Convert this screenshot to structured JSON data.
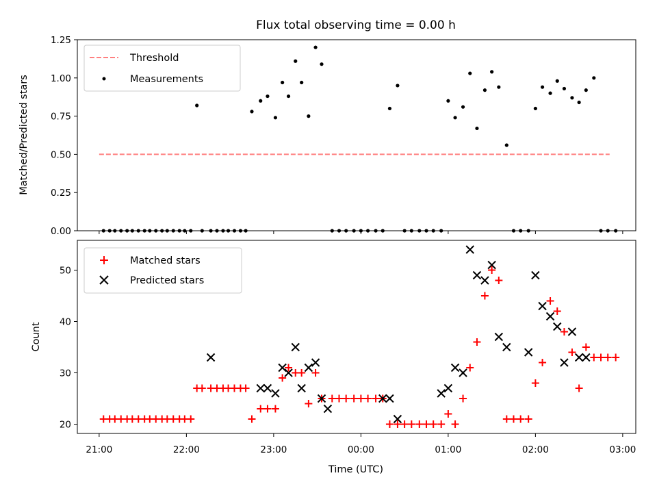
{
  "title": "Flux total observing time = 0.00 h",
  "colors": {
    "threshold": "#ff7f7f",
    "measurement": "#000000",
    "matched": "#ff0000",
    "predicted": "#000000"
  },
  "chart_data": [
    {
      "type": "scatter",
      "ylabel": "Matched/Predicted stars",
      "ylim": [
        0,
        1.25
      ],
      "yticks": [
        "0.00",
        "0.25",
        "0.50",
        "0.75",
        "1.00",
        "1.25"
      ],
      "xlim": [
        -0.25,
        6.15
      ],
      "legend": {
        "placement": "top-left",
        "entries": [
          "Threshold",
          "Measurements"
        ]
      },
      "threshold": {
        "name": "Threshold",
        "value": 0.5,
        "x_range": [
          0.0,
          5.85
        ]
      },
      "series": [
        {
          "name": "Measurements",
          "x": [
            0.05,
            0.12,
            0.18,
            0.25,
            0.32,
            0.38,
            0.45,
            0.52,
            0.58,
            0.65,
            0.72,
            0.78,
            0.85,
            0.92,
            0.98,
            1.05,
            1.12,
            1.18,
            1.28,
            1.35,
            1.42,
            1.48,
            1.55,
            1.62,
            1.68,
            1.75,
            1.85,
            1.93,
            2.02,
            2.1,
            2.17,
            2.25,
            2.32,
            2.4,
            2.48,
            2.55,
            2.67,
            2.75,
            2.83,
            2.92,
            3.0,
            3.08,
            3.17,
            3.25,
            3.33,
            3.42,
            3.5,
            3.58,
            3.67,
            3.75,
            3.83,
            3.92,
            4.0,
            4.08,
            4.17,
            4.25,
            4.33,
            4.42,
            4.5,
            4.58,
            4.67,
            4.75,
            4.83,
            4.92,
            5.0,
            5.08,
            5.17,
            5.25,
            5.33,
            5.42,
            5.5,
            5.58,
            5.67,
            5.75,
            5.83,
            5.92
          ],
          "y": [
            0,
            0,
            0,
            0,
            0,
            0,
            0,
            0,
            0,
            0,
            0,
            0,
            0,
            0,
            0,
            0,
            0.82,
            0,
            0,
            0,
            0,
            0,
            0,
            0,
            0,
            0.78,
            0.85,
            0.88,
            0.74,
            0.97,
            0.88,
            1.11,
            0.97,
            0.75,
            1.2,
            1.09,
            0,
            0,
            0,
            0,
            0,
            0,
            0,
            0,
            0.8,
            0.95,
            0,
            0,
            0,
            0,
            0,
            0,
            0.85,
            0.74,
            0.81,
            1.03,
            0.67,
            0.92,
            1.04,
            0.94,
            0.56,
            0,
            0,
            0,
            0.8,
            0.94,
            0.9,
            0.98,
            0.93,
            0.87,
            0.84,
            0.92,
            1.0,
            0,
            0,
            0
          ]
        }
      ]
    },
    {
      "type": "scatter",
      "xlabel": "Time (UTC)",
      "ylabel": "Count",
      "ylim": [
        18.2,
        55.8
      ],
      "yticks": [
        "20",
        "30",
        "40",
        "50"
      ],
      "xlim": [
        -0.25,
        6.15
      ],
      "xticks": [
        "21:00",
        "22:00",
        "23:00",
        "00:00",
        "01:00",
        "02:00",
        "03:00"
      ],
      "legend": {
        "placement": "top-left",
        "entries": [
          "Matched stars",
          "Predicted stars"
        ]
      },
      "series": [
        {
          "name": "Matched stars",
          "x": [
            0.05,
            0.12,
            0.18,
            0.25,
            0.32,
            0.38,
            0.45,
            0.52,
            0.58,
            0.65,
            0.72,
            0.78,
            0.85,
            0.92,
            0.98,
            1.05,
            1.12,
            1.18,
            1.28,
            1.35,
            1.42,
            1.48,
            1.55,
            1.62,
            1.68,
            1.75,
            1.85,
            1.93,
            2.02,
            2.1,
            2.17,
            2.25,
            2.32,
            2.4,
            2.48,
            2.55,
            2.67,
            2.75,
            2.83,
            2.92,
            3.0,
            3.08,
            3.17,
            3.25,
            3.33,
            3.42,
            3.5,
            3.58,
            3.67,
            3.75,
            3.83,
            3.92,
            4.0,
            4.08,
            4.17,
            4.25,
            4.33,
            4.42,
            4.5,
            4.58,
            4.67,
            4.75,
            4.83,
            4.92,
            5.0,
            5.08,
            5.17,
            5.25,
            5.33,
            5.42,
            5.5,
            5.58,
            5.67,
            5.75,
            5.83,
            5.92
          ],
          "y": [
            21,
            21,
            21,
            21,
            21,
            21,
            21,
            21,
            21,
            21,
            21,
            21,
            21,
            21,
            21,
            21,
            27,
            27,
            27,
            27,
            27,
            27,
            27,
            27,
            27,
            21,
            23,
            23,
            23,
            29,
            31,
            30,
            30,
            24,
            30,
            25,
            25,
            25,
            25,
            25,
            25,
            25,
            25,
            25,
            20,
            20,
            20,
            20,
            20,
            20,
            20,
            20,
            22,
            20,
            25,
            31,
            36,
            45,
            50,
            48,
            21,
            21,
            21,
            21,
            28,
            32,
            44,
            42,
            38,
            34,
            27,
            35,
            33,
            33,
            33,
            33
          ]
        },
        {
          "name": "Predicted stars",
          "x": [
            1.28,
            1.85,
            1.93,
            2.02,
            2.1,
            2.17,
            2.25,
            2.32,
            2.4,
            2.48,
            2.55,
            2.62,
            3.25,
            3.33,
            3.42,
            3.92,
            4.0,
            4.08,
            4.17,
            4.25,
            4.33,
            4.42,
            4.5,
            4.58,
            4.67,
            4.92,
            5.0,
            5.08,
            5.17,
            5.25,
            5.33,
            5.42,
            5.5,
            5.58
          ],
          "y": [
            33,
            27,
            27,
            26,
            31,
            30,
            35,
            27,
            31,
            32,
            25,
            23,
            25,
            25,
            21,
            26,
            27,
            31,
            30,
            54,
            49,
            48,
            51,
            37,
            35,
            34,
            49,
            43,
            41,
            39,
            32,
            38,
            33,
            33
          ]
        }
      ]
    }
  ]
}
